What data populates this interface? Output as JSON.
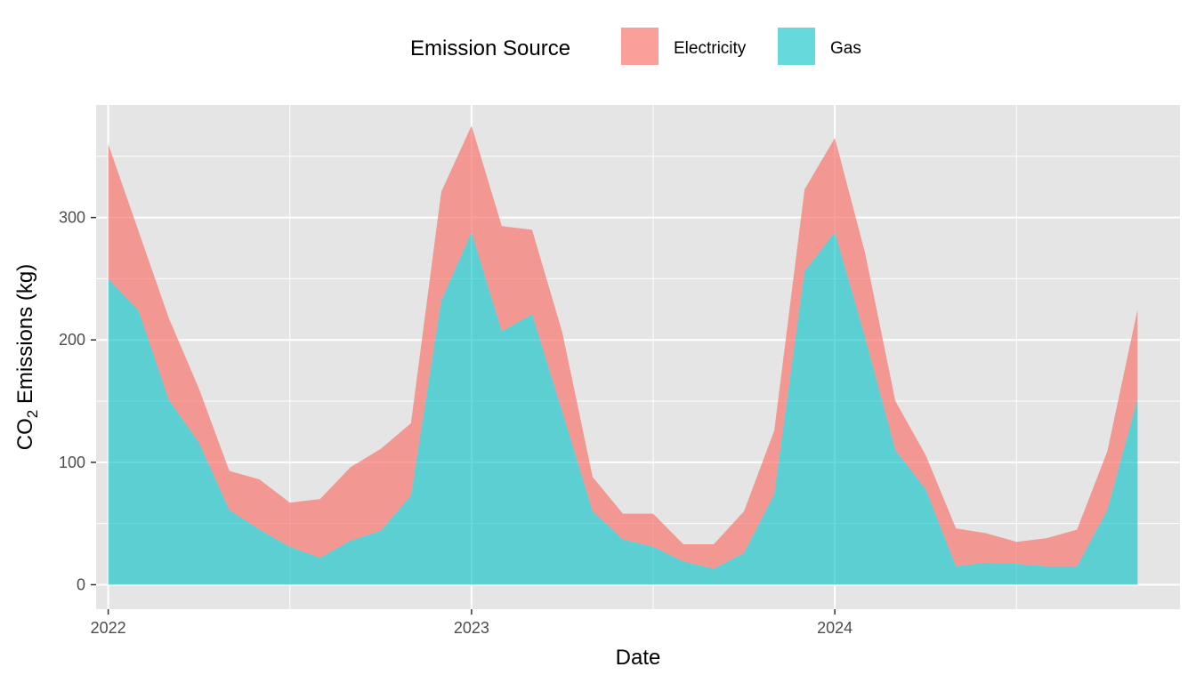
{
  "chart_data": {
    "type": "area",
    "stacked": true,
    "title": "",
    "xlabel": "Date",
    "ylabel_main": "CO",
    "ylabel_sub": "2",
    "ylabel_rest": " Emissions (kg)",
    "ylim": [
      -20,
      392
    ],
    "xlim": [
      -0.4,
      35.4
    ],
    "yticks": [
      0,
      100,
      200,
      300
    ],
    "ytick_labels": [
      "0",
      "100",
      "200",
      "300"
    ],
    "xticks": [
      0,
      12,
      24
    ],
    "xtick_labels": [
      "2022",
      "2023",
      "2024"
    ],
    "legend": {
      "title": "Emission Source",
      "position": "top",
      "entries": [
        "Electricity",
        "Gas"
      ]
    },
    "x": [
      0,
      1,
      2,
      3,
      4,
      5,
      6,
      7,
      8,
      9,
      10,
      11,
      12,
      13,
      14,
      15,
      16,
      17,
      18,
      19,
      20,
      21,
      22,
      23,
      24,
      25,
      26,
      27,
      28,
      29,
      30,
      31,
      32,
      33,
      34
    ],
    "series": [
      {
        "name": "Gas",
        "color": "#00BFC4",
        "values": [
          250,
          224,
          151,
          116,
          61,
          45,
          31,
          22,
          36,
          44,
          73,
          232,
          288,
          207,
          221,
          141,
          60,
          37,
          31,
          19,
          13,
          26,
          74,
          256,
          288,
          202,
          110,
          78,
          15,
          18,
          17,
          15,
          15,
          61,
          152
        ]
      },
      {
        "name": "Electricity",
        "color": "#F8766D",
        "values": [
          110,
          65,
          67,
          44,
          32,
          41,
          36,
          48,
          60,
          67,
          59,
          89,
          87,
          86,
          69,
          65,
          28,
          21,
          27,
          14,
          20,
          34,
          52,
          67,
          77,
          69,
          40,
          28,
          31,
          24,
          18,
          23,
          30,
          48,
          73
        ]
      }
    ]
  }
}
